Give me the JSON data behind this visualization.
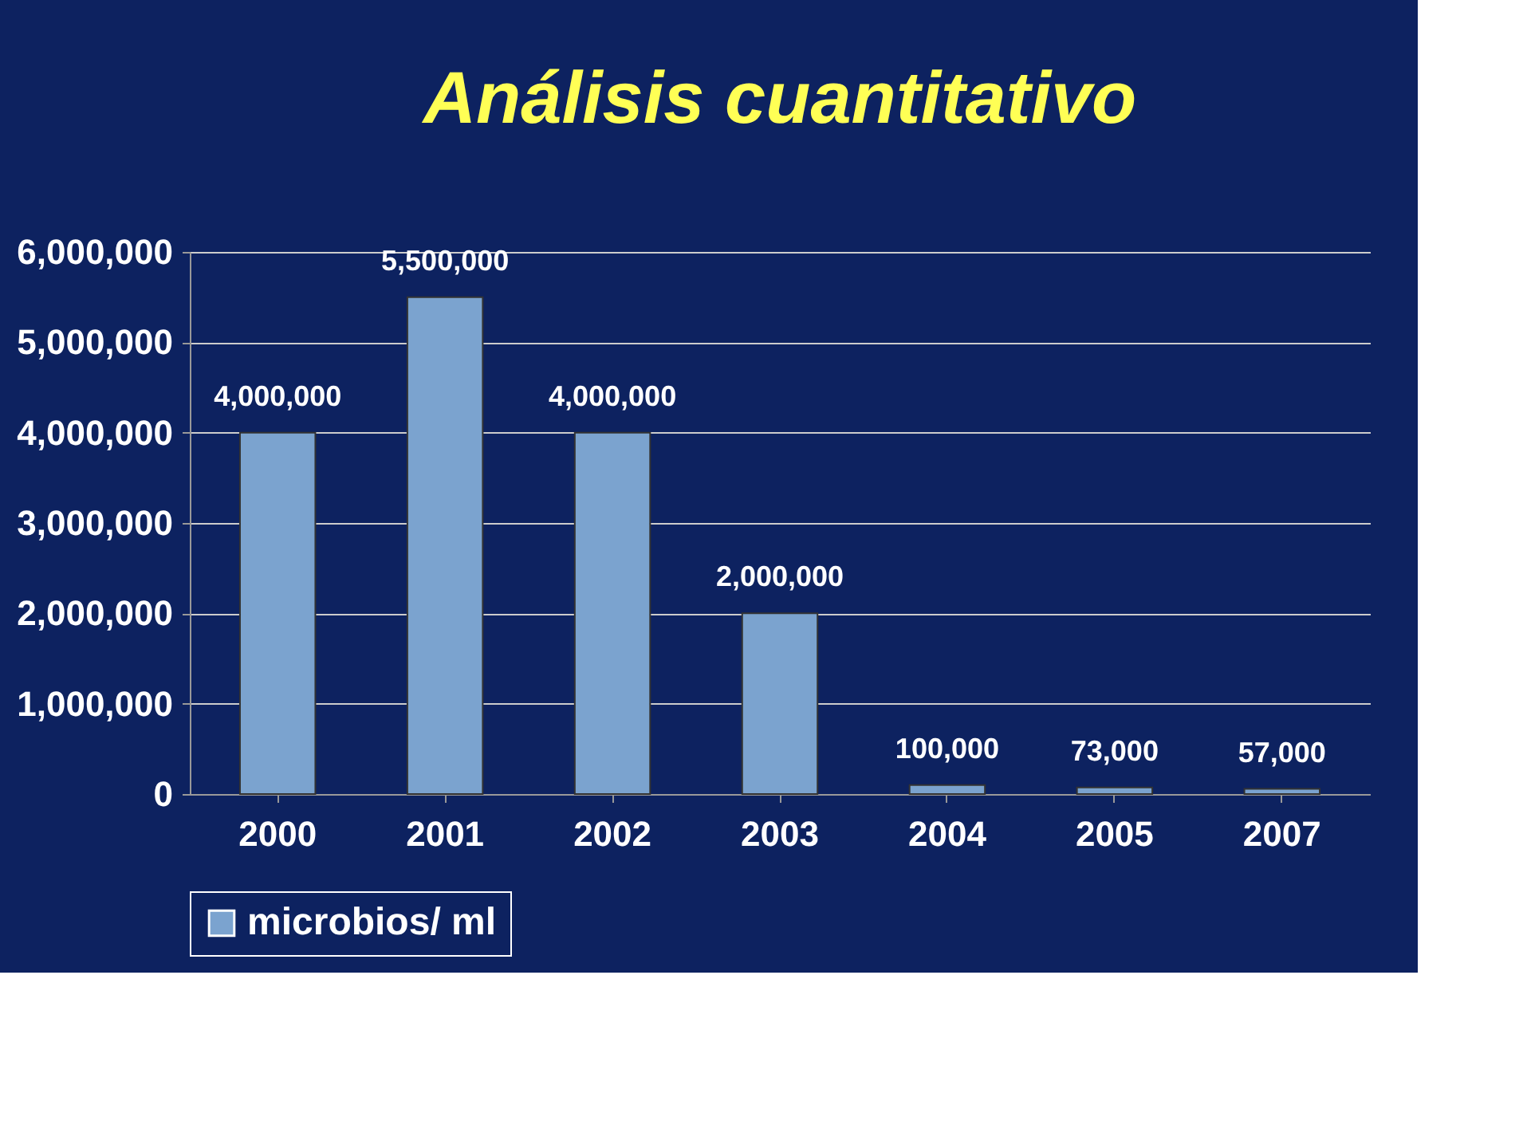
{
  "chart_data": {
    "type": "bar",
    "title": "Análisis cuantitativo",
    "categories": [
      "2000",
      "2001",
      "2002",
      "2003",
      "2004",
      "2005",
      "2007"
    ],
    "series": [
      {
        "name": "microbios/ ml",
        "color": "#7ba3cf",
        "values": [
          4000000,
          5500000,
          4000000,
          2000000,
          100000,
          73000,
          57000
        ],
        "value_labels": [
          "4,000,000",
          "5,500,000",
          "4,000,000",
          "2,000,000",
          "100,000",
          "73,000",
          "57,000"
        ]
      }
    ],
    "ylim": [
      0,
      6000000
    ],
    "yticks": [
      {
        "value": 0,
        "label": "0"
      },
      {
        "value": 1000000,
        "label": "1,000,000"
      },
      {
        "value": 2000000,
        "label": "2,000,000"
      },
      {
        "value": 3000000,
        "label": "3,000,000"
      },
      {
        "value": 4000000,
        "label": "4,000,000"
      },
      {
        "value": 5000000,
        "label": "5,000,000"
      },
      {
        "value": 6000000,
        "label": "6,000,000"
      }
    ],
    "grid": "y",
    "legend": "bottom"
  }
}
